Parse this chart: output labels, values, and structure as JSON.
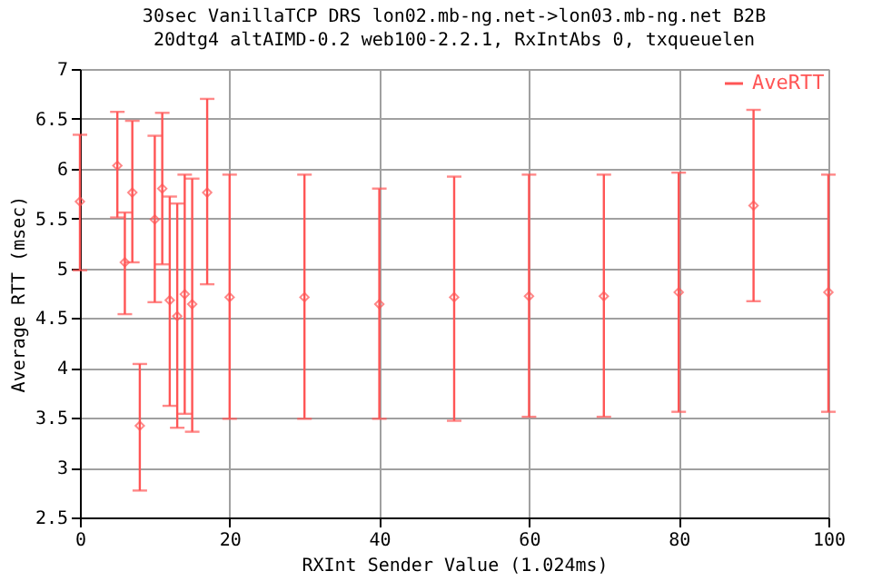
{
  "chart_data": {
    "type": "scatter",
    "title": "30sec VanillaTCP DRS lon02.mb-ng.net->lon03.mb-ng.net B2B",
    "subtitle": "20dtg4 altAIMD-0.2 web100-2.2.1, RxIntAbs 0, txqueuelen",
    "xlabel": "RXInt Sender Value (1.024ms)",
    "ylabel": "Average RTT (msec)",
    "x": [
      0,
      5,
      6,
      7,
      8,
      10,
      11,
      12,
      13,
      14,
      15,
      17,
      20,
      30,
      40,
      50,
      60,
      70,
      80,
      90,
      100
    ],
    "series": [
      {
        "name": "AveRTT",
        "color": "#ff5555",
        "values": [
          5.67,
          6.03,
          5.06,
          5.76,
          3.42,
          5.49,
          5.8,
          4.68,
          4.52,
          4.74,
          4.64,
          5.76,
          4.71,
          4.71,
          4.64,
          4.71,
          4.72,
          4.72,
          4.76,
          5.63,
          4.76
        ],
        "errors": [
          [
            4.98,
            6.34
          ],
          [
            5.51,
            6.57
          ],
          [
            4.54,
            5.56
          ],
          [
            5.06,
            6.48
          ],
          [
            2.77,
            4.04
          ],
          [
            4.66,
            6.33
          ],
          [
            5.04,
            6.56
          ],
          [
            3.62,
            5.72
          ],
          [
            3.4,
            5.65
          ],
          [
            3.54,
            5.94
          ],
          [
            3.36,
            5.9
          ],
          [
            4.84,
            6.7
          ],
          [
            3.49,
            5.94
          ],
          [
            3.49,
            5.94
          ],
          [
            3.49,
            5.8
          ],
          [
            3.47,
            5.92
          ],
          [
            3.51,
            5.94
          ],
          [
            3.51,
            5.94
          ],
          [
            3.56,
            5.96
          ],
          [
            4.67,
            6.59
          ],
          [
            3.56,
            5.94
          ]
        ]
      }
    ],
    "xlim": [
      0,
      100
    ],
    "xticks": [
      0,
      20,
      40,
      60,
      80,
      100
    ],
    "ylim": [
      2.5,
      7
    ],
    "yticks": [
      2.5,
      3,
      3.5,
      4,
      4.5,
      5,
      5.5,
      6,
      6.5,
      7
    ],
    "grid": true,
    "legend": "top right",
    "marker": "diamond"
  }
}
